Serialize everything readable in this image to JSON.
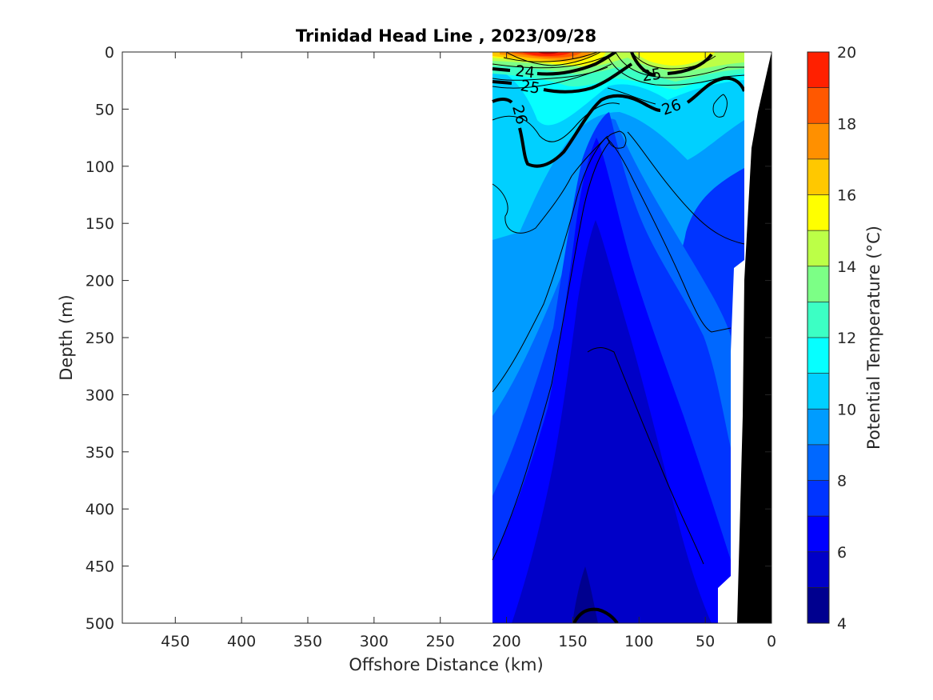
{
  "chart_data": {
    "type": "heatmap",
    "subtype": "filled-contour-section",
    "title": "Trinidad Head Line , 2023/09/28",
    "xlabel": "Offshore Distance (km)",
    "ylabel": "Depth (m)",
    "xlim": [
      490,
      0
    ],
    "ylim": [
      0,
      500
    ],
    "x_reversed": true,
    "y_reversed": true,
    "x_ticks": [
      "450",
      "400",
      "350",
      "300",
      "250",
      "200",
      "150",
      "100",
      "50",
      "0"
    ],
    "y_ticks": [
      "0",
      "50",
      "100",
      "150",
      "200",
      "250",
      "300",
      "350",
      "400",
      "450",
      "500"
    ],
    "data_extent_km": [
      210,
      0
    ],
    "colorbar": {
      "label": "Potential Temperature (°C)",
      "range": [
        4,
        20
      ],
      "ticks": [
        "4",
        "6",
        "8",
        "10",
        "12",
        "14",
        "16",
        "18",
        "20"
      ],
      "levels": [
        4,
        5,
        6,
        7,
        8,
        9,
        10,
        11,
        12,
        13,
        14,
        15,
        16,
        17,
        18,
        19,
        20
      ],
      "colors": [
        "#00008f",
        "#0000c8",
        "#0000ff",
        "#0034ff",
        "#0068ff",
        "#009cff",
        "#00d0ff",
        "#06ffff",
        "#3cffc4",
        "#7cff86",
        "#bcff47",
        "#ffff00",
        "#ffc800",
        "#ff9000",
        "#ff5800",
        "#ff2000",
        "#c00000"
      ]
    },
    "density_contour_labels": [
      "24",
      "25",
      "25",
      "26",
      "26"
    ],
    "bathymetry": "black"
  }
}
